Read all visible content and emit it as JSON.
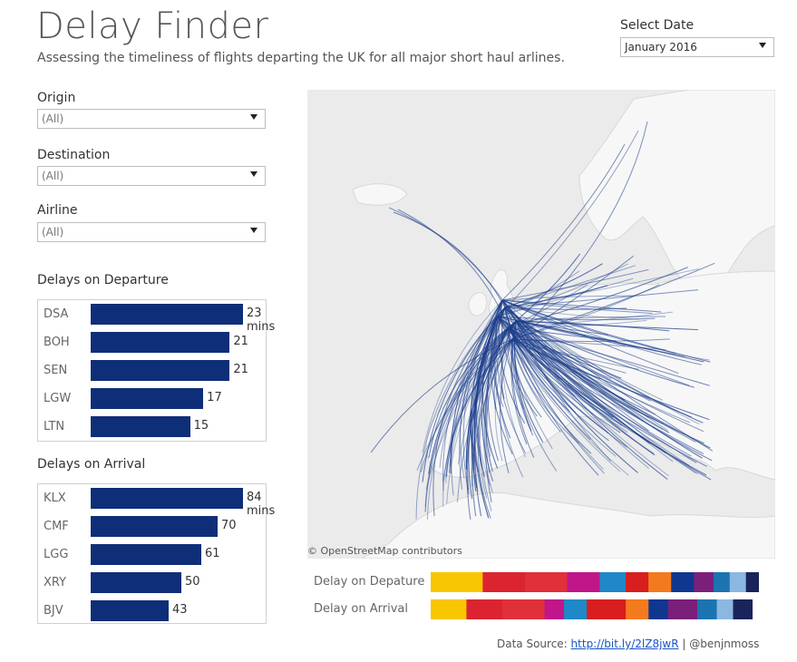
{
  "header": {
    "title": "Delay Finder",
    "subtitle": "Assessing the timeliness of flights departing the UK for all major short haul arlines."
  },
  "date_filter": {
    "label": "Select Date",
    "value": "January 2016"
  },
  "filters": [
    {
      "label": "Origin",
      "value": "(All)"
    },
    {
      "label": "Destination",
      "value": "(All)"
    },
    {
      "label": "Airline",
      "value": "(All)"
    }
  ],
  "map": {
    "attribution": "© OpenStreetMap contributors",
    "route_color": "#1d3f8c"
  },
  "legend": {
    "departure_label": "Delay on Depature",
    "arrival_label": "Delay on Arrival"
  },
  "footer": {
    "prefix": "Data Source: ",
    "link": "http://bit.ly/2lZ8jwR",
    "suffix": " | @benjnmoss"
  },
  "chart_data": [
    {
      "type": "bar",
      "orientation": "horizontal",
      "title": "Delays on Departure",
      "categories": [
        "DSA",
        "BOH",
        "SEN",
        "LGW",
        "LTN"
      ],
      "values": [
        23,
        21,
        21,
        17,
        15
      ],
      "labels": [
        "23 mins",
        "21",
        "21",
        "17",
        "15"
      ],
      "color": "#0f2e78"
    },
    {
      "type": "bar",
      "orientation": "horizontal",
      "title": "Delays on Arrival",
      "categories": [
        "KLX",
        "CMF",
        "LGG",
        "XRY",
        "BJV"
      ],
      "values": [
        84,
        70,
        61,
        50,
        43
      ],
      "labels": [
        "84 mins",
        "70",
        "61",
        "50",
        "43"
      ],
      "color": "#0f2e78"
    },
    {
      "type": "bar",
      "orientation": "stacked-horizontal",
      "title": "Delay on Depature",
      "segments": [
        {
          "value": 16,
          "color": "#f8c600"
        },
        {
          "value": 13,
          "color": "#dc2430"
        },
        {
          "value": 13,
          "color": "#e0303a"
        },
        {
          "value": 10,
          "color": "#c0168a"
        },
        {
          "value": 8,
          "color": "#1e88c8"
        },
        {
          "value": 7,
          "color": "#d81e1e"
        },
        {
          "value": 7,
          "color": "#f47a1f"
        },
        {
          "value": 7,
          "color": "#0f3790"
        },
        {
          "value": 6,
          "color": "#7a1f7a"
        },
        {
          "value": 5,
          "color": "#1b74b0"
        },
        {
          "value": 5,
          "color": "#8ab8e0"
        },
        {
          "value": 4,
          "color": "#1a235a"
        }
      ]
    },
    {
      "type": "bar",
      "orientation": "stacked-horizontal",
      "title": "Delay on Arrival",
      "segments": [
        {
          "value": 11,
          "color": "#f8c600"
        },
        {
          "value": 11,
          "color": "#dc2430"
        },
        {
          "value": 13,
          "color": "#e0303a"
        },
        {
          "value": 6,
          "color": "#c0168a"
        },
        {
          "value": 7,
          "color": "#1e88c8"
        },
        {
          "value": 12,
          "color": "#d81e1e"
        },
        {
          "value": 7,
          "color": "#f47a1f"
        },
        {
          "value": 6,
          "color": "#0f3790"
        },
        {
          "value": 9,
          "color": "#7a1f7a"
        },
        {
          "value": 6,
          "color": "#1b74b0"
        },
        {
          "value": 5,
          "color": "#8ab8e0"
        },
        {
          "value": 6,
          "color": "#1a235a"
        }
      ]
    }
  ]
}
